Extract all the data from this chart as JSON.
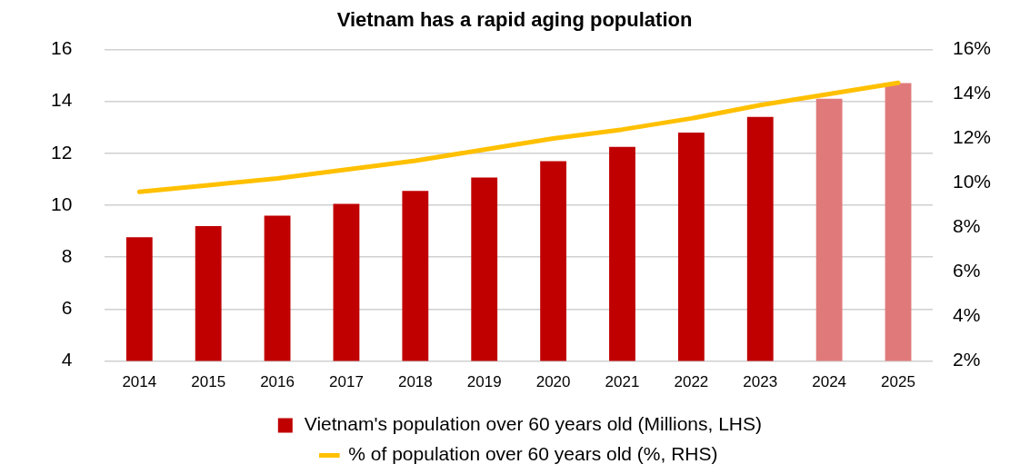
{
  "chart_data": {
    "type": "bar",
    "title": "Vietnam has a rapid aging population",
    "categories": [
      "2014",
      "2015",
      "2016",
      "2017",
      "2018",
      "2019",
      "2020",
      "2021",
      "2022",
      "2023",
      "2024",
      "2025"
    ],
    "series": [
      {
        "name": "Vietnam's population over 60 years old (Millions, LHS)",
        "color": "#c00000",
        "colors": [
          "#c00000",
          "#c00000",
          "#c00000",
          "#c00000",
          "#c00000",
          "#c00000",
          "#c00000",
          "#c00000",
          "#c00000",
          "#c00000",
          "#e07a7a",
          "#e07a7a"
        ],
        "values": [
          8.77,
          9.2,
          9.6,
          10.05,
          10.55,
          11.07,
          11.7,
          12.25,
          12.8,
          13.4,
          14.1,
          14.7
        ]
      },
      {
        "name": "% of population over 60 years old (%, RHS)",
        "type": "line",
        "axis": "y2",
        "color": "#ffc000",
        "values": [
          9.6,
          9.9,
          10.2,
          10.6,
          11.0,
          11.5,
          12.0,
          12.4,
          12.9,
          13.5,
          14.0,
          14.5
        ]
      }
    ],
    "ylim": [
      4,
      16
    ],
    "yticks": [
      4,
      6,
      8,
      10,
      12,
      14,
      16
    ],
    "y2lim": [
      2,
      16
    ],
    "y2ticks": [
      {
        "value": 2,
        "label": "2%"
      },
      {
        "value": 4,
        "label": "4%"
      },
      {
        "value": 6,
        "label": "6%"
      },
      {
        "value": 8,
        "label": "8%"
      },
      {
        "value": 10,
        "label": "10%"
      },
      {
        "value": 12,
        "label": "12%"
      },
      {
        "value": 14,
        "label": "14%"
      },
      {
        "value": 16,
        "label": "16%"
      }
    ],
    "grid": "y",
    "legend": "bottom",
    "marker": "none",
    "line_style": "solid"
  }
}
